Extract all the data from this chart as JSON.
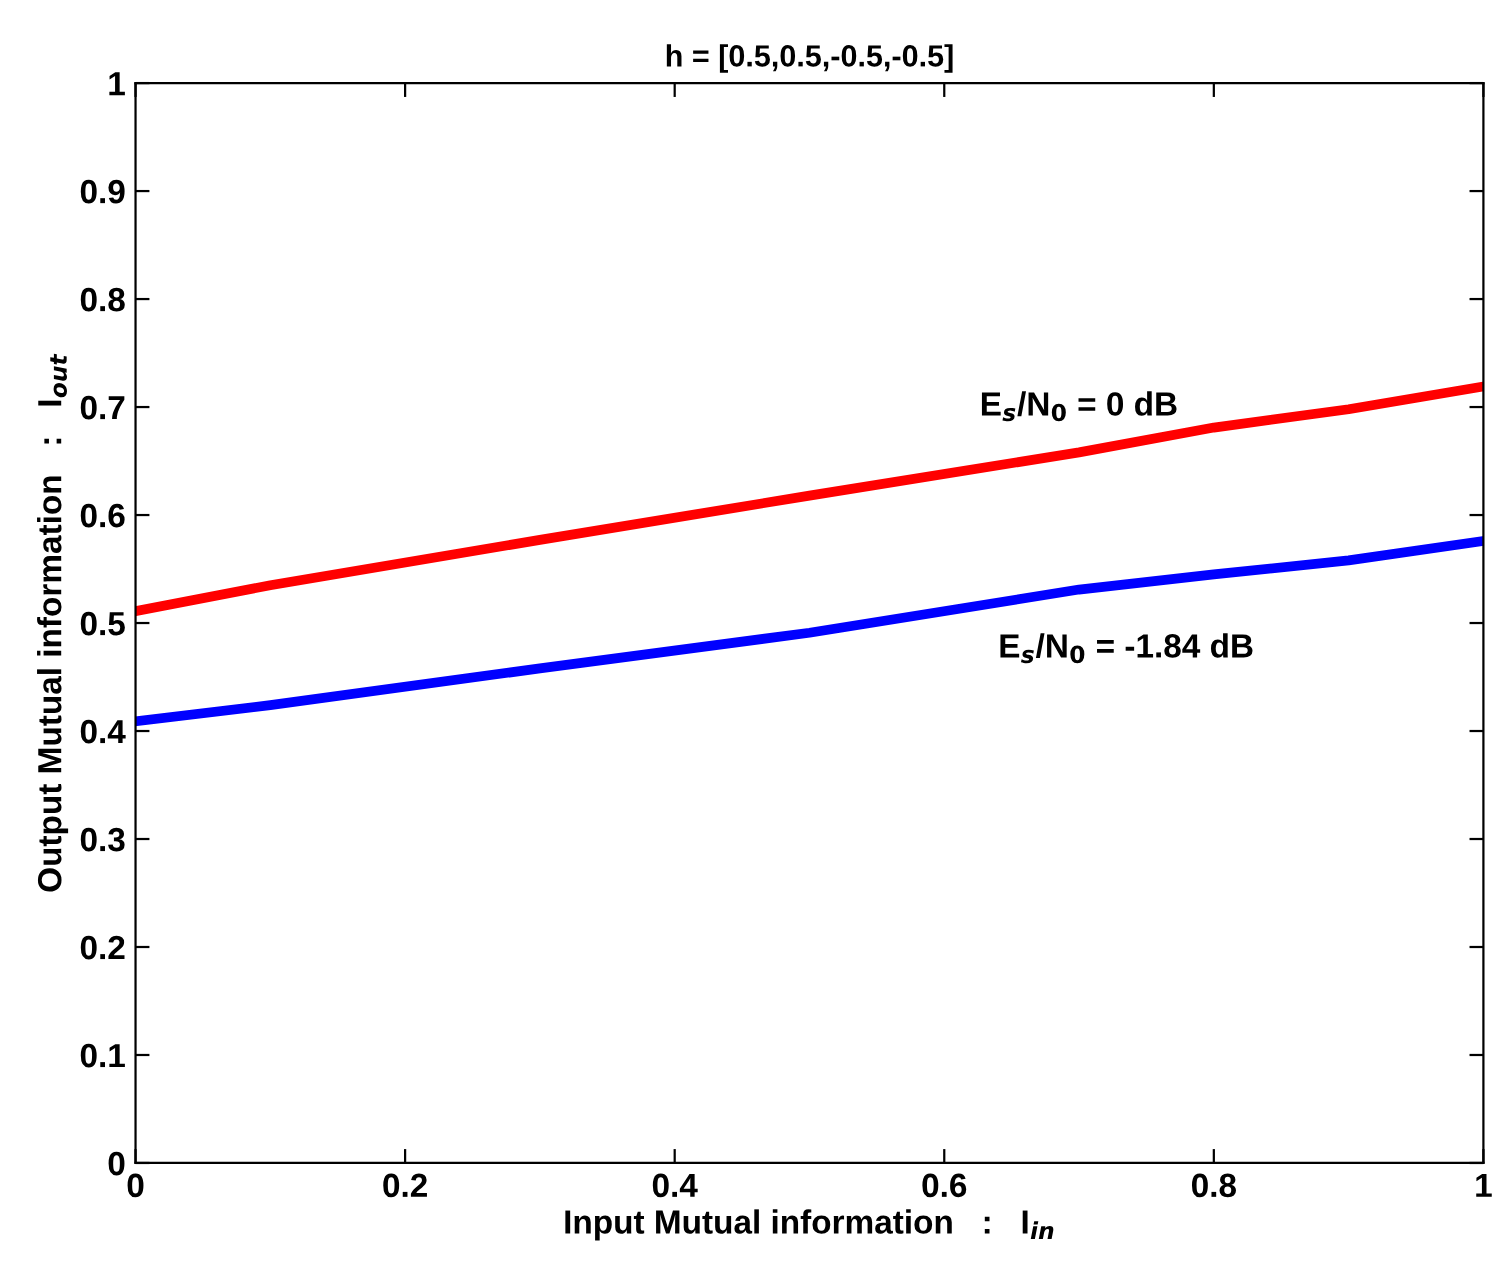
{
  "chart_data": {
    "type": "line",
    "title": "h = [0.5,0.5,-0.5,-0.5]",
    "xlabel": "Input Mutual information   :   I$_{in}$",
    "ylabel": "Output Mutual information   :   I$_{out}$",
    "x": [
      0,
      0.1,
      0.3,
      0.5,
      0.7,
      0.8,
      0.9,
      1
    ],
    "series": [
      {
        "color": "#ff0000",
        "values": [
          0.511,
          0.535,
          0.577,
          0.618,
          0.658,
          0.681,
          0.698,
          0.719
        ]
      },
      {
        "color": "#0000ff",
        "values": [
          0.409,
          0.424,
          0.458,
          0.491,
          0.531,
          0.545,
          0.558,
          0.576
        ]
      }
    ],
    "annotations": [
      "E$_{s}$/N$_{0}$ = 0 dB",
      "E$_{s}$/N$_{0}$ = -1.84 dB"
    ],
    "xlim": [
      0,
      1
    ],
    "ylim": [
      0,
      1
    ],
    "xticks": [
      {
        "value": 0,
        "label": "0"
      },
      0.2,
      0.4,
      0.6,
      0.8,
      {
        "value": 1,
        "label": "1"
      }
    ],
    "yticks": [
      {
        "value": 0,
        "label": "0"
      },
      0.1,
      0.2,
      0.3,
      0.4,
      0.5,
      0.6,
      0.7,
      0.8,
      0.9,
      {
        "value": 1,
        "label": "1"
      }
    ],
    "grid": false,
    "line_style": "solid"
  }
}
